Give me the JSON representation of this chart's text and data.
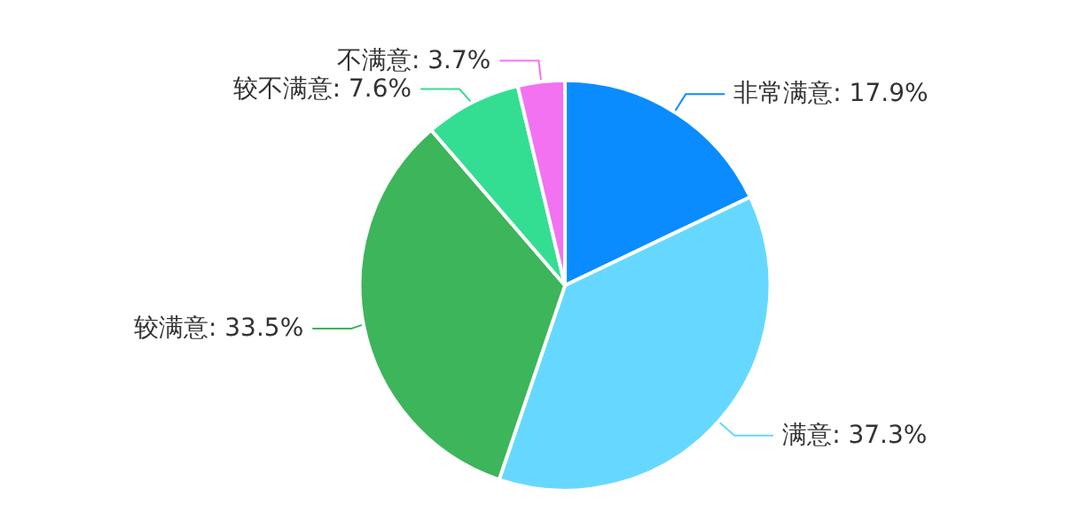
{
  "chart_data": {
    "type": "pie",
    "categories": [
      "非常满意",
      "满意",
      "较满意",
      "较不满意",
      "不满意"
    ],
    "values": [
      17.9,
      37.3,
      33.5,
      7.6,
      3.7
    ],
    "value_labels": [
      "17.9%",
      "37.3%",
      "33.5%",
      "7.6%",
      "3.7%"
    ],
    "colors": [
      "#0a8cff",
      "#66d8ff",
      "#3cb55b",
      "#33de92",
      "#f372f2"
    ]
  }
}
